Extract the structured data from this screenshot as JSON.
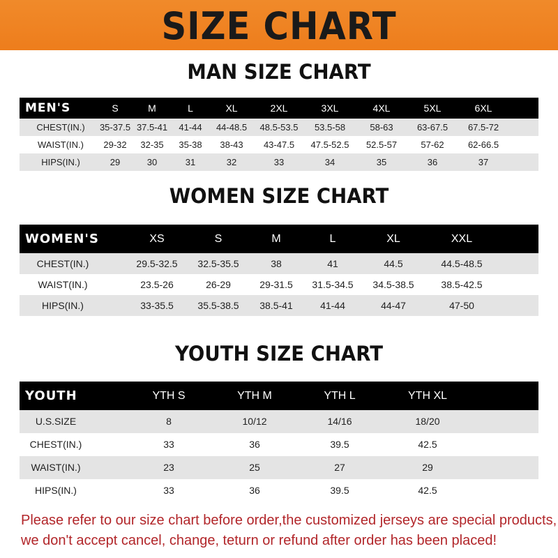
{
  "banner_title": "SIZE CHART",
  "men": {
    "title": "MAN SIZE CHART",
    "header": [
      "MEN'S",
      "S",
      "M",
      "L",
      "XL",
      "2XL",
      "3XL",
      "4XL",
      "5XL",
      "6XL"
    ],
    "rows": [
      [
        "CHEST(IN.)",
        "35-37.5",
        "37.5-41",
        "41-44",
        "44-48.5",
        "48.5-53.5",
        "53.5-58",
        "58-63",
        "63-67.5",
        "67.5-72"
      ],
      [
        "WAIST(IN.)",
        "29-32",
        "32-35",
        "35-38",
        "38-43",
        "43-47.5",
        "47.5-52.5",
        "52.5-57",
        "57-62",
        "62-66.5"
      ],
      [
        "HIPS(IN.)",
        "29",
        "30",
        "31",
        "32",
        "33",
        "34",
        "35",
        "36",
        "37"
      ]
    ]
  },
  "women": {
    "title": "WOMEN SIZE CHART",
    "header": [
      "WOMEN'S",
      "XS",
      "S",
      "M",
      "L",
      "XL",
      "XXL"
    ],
    "rows": [
      [
        "CHEST(IN.)",
        "29.5-32.5",
        "32.5-35.5",
        "38",
        "41",
        "44.5",
        "44.5-48.5"
      ],
      [
        "WAIST(IN.)",
        "23.5-26",
        "26-29",
        "29-31.5",
        "31.5-34.5",
        "34.5-38.5",
        "38.5-42.5"
      ],
      [
        "HIPS(IN.)",
        "33-35.5",
        "35.5-38.5",
        "38.5-41",
        "41-44",
        "44-47",
        "47-50"
      ]
    ]
  },
  "youth": {
    "title": "YOUTH SIZE CHART",
    "header": [
      "YOUTH",
      "YTH S",
      "YTH M",
      "YTH L",
      "YTH XL"
    ],
    "rows": [
      [
        "U.S.SIZE",
        "8",
        "10/12",
        "14/16",
        "18/20"
      ],
      [
        "CHEST(IN.)",
        "33",
        "36",
        "39.5",
        "42.5"
      ],
      [
        "WAIST(IN.)",
        "23",
        "25",
        "27",
        "29"
      ],
      [
        "HIPS(IN.)",
        "33",
        "36",
        "39.5",
        "42.5"
      ]
    ]
  },
  "notice": [
    "Please refer to our size chart before order,the customized jerseys are special products,",
    "we don't accept cancel, change, teturn or refund after order has been placed!"
  ],
  "colors": {
    "banner": "#ef8424",
    "notice": "#b2262a",
    "header_bg": "#000000",
    "row_gray": "#e4e4e4"
  }
}
